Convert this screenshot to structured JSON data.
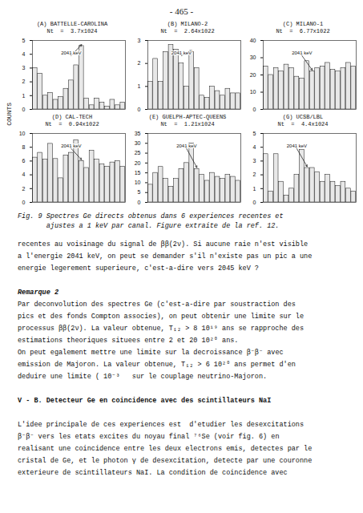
{
  "header": "- 465 -",
  "ylabel": "COUNTS",
  "caption": [
    "Fig. 9 Spectres Ge directs obtenus dans 6 experiences recentes et",
    "       ajustes a 1 keV par canal. Figure extraite de la ref. 12."
  ],
  "body": [
    [
      {
        "text": "recentes au voisinage du signal de ββ(2ν). Si aucune raie n'est visible",
        "style": "normal"
      },
      {
        "text": "a l'energie 2041 keV, on peut se demander s'il n'existe pas un pic a une",
        "style": "normal"
      },
      {
        "text": "energie legerement superieure, c'est-a-dire vers 2045 keV ?",
        "style": "normal"
      }
    ],
    [
      {
        "text": "Remarque 2",
        "style": "bold_italic"
      },
      {
        "text": "Par deconvolution des spectres Ge (c'est-a-dire par soustraction des",
        "style": "normal"
      },
      {
        "text": "pics et des fonds Compton associes), on peut obtenir une limite sur le",
        "style": "normal"
      },
      {
        "text": "processus ββ(2ν). La valeur obtenue, T₁₂ > 8 10¹⁹ ans se rapproche des",
        "style": "normal"
      },
      {
        "text": "estimations theoriques situees entre 2 et 20 10²⁰ ans.",
        "style": "normal"
      },
      {
        "text": "On peut egalement mettre une limite sur la decroissance β⁻β⁻ avec",
        "style": "normal"
      },
      {
        "text": "emission de Majoron. La valeur obtenue, T₁₂ > 6 10²⁰ ans permet d'en",
        "style": "normal"
      },
      {
        "text": "deduire une limite ( 10⁻³   sur le couplage neutrino-Majoron.",
        "style": "normal"
      }
    ],
    [
      {
        "text": "V - B. Detecteur Ge en coincidence avec des scintillateurs NaI",
        "style": "bold"
      }
    ],
    [
      {
        "text": "L'idee principale de ces experiences est  d'etudier les desexcitations",
        "style": "normal"
      },
      {
        "text": "β⁻β⁻ vers les etats excites du noyau final ⁷⁶Se (voir fig. 6) en",
        "style": "normal"
      },
      {
        "text": "realisant une coincidence entre les deux electrons emis, detectes par le",
        "style": "normal"
      },
      {
        "text": "cristal de Ge, et le photon γ de desexcitation, detecte par une couronne",
        "style": "normal"
      },
      {
        "text": "exterieure de scintillateurs NaI. La condition de coincidence avec",
        "style": "normal"
      }
    ]
  ],
  "chart_data": [
    {
      "type": "bar",
      "title": "(A) BATTELLE-CAROLINA",
      "subtitle": "Nt  =  3.7x1024",
      "categories": [
        null,
        null,
        null,
        null,
        null,
        null,
        null,
        null,
        null,
        null,
        null,
        null,
        null,
        null,
        null,
        null,
        null,
        null
      ],
      "values": [
        3.0,
        2.6,
        1.0,
        1.2,
        0.7,
        0.9,
        1.5,
        2.1,
        3.2,
        4.6,
        0.8,
        0.3,
        0.8,
        0.5,
        0.2,
        0.7,
        0.3,
        0.5
      ],
      "color": "#e8e8e8",
      "ylim": [
        0,
        5
      ],
      "yticks": [
        0,
        1,
        2,
        3,
        4,
        5
      ],
      "grid": false,
      "tick_labels": "y",
      "annotations": [
        {
          "text": "2041 keV",
          "bar": 9
        }
      ]
    },
    {
      "type": "bar",
      "title": "(B) MILANO-2",
      "subtitle": "Nt  =  2.64x1022",
      "categories": [
        null,
        null,
        null,
        null,
        null,
        null,
        null,
        null,
        null,
        null,
        null,
        null,
        null,
        null,
        null,
        null,
        null,
        null
      ],
      "values": [
        1.2,
        2.2,
        1.2,
        2.5,
        2.8,
        2.6,
        2.0,
        1.0,
        2.5,
        1.8,
        0.6,
        0.5,
        1.0,
        0.8,
        0.6,
        0.9,
        0.7,
        0.7
      ],
      "color": "#e8e8e8",
      "ylim": [
        0,
        3
      ],
      "yticks": [
        0,
        1,
        2,
        3
      ],
      "grid": false,
      "tick_labels": "y",
      "annotations": [
        {
          "text": "2041 keV",
          "bar": 8
        }
      ]
    },
    {
      "type": "bar",
      "title": "(C) MILANO-1",
      "subtitle": "Nt  =  6.77x1022",
      "categories": [
        null,
        null,
        null,
        null,
        null,
        null,
        null,
        null,
        null,
        null,
        null,
        null,
        null,
        null,
        null,
        null,
        null,
        null
      ],
      "values": [
        25,
        20,
        24,
        22,
        26,
        24,
        19,
        18,
        28,
        22,
        24,
        25,
        27,
        23,
        22,
        24,
        27,
        25
      ],
      "color": "#e8e8e8",
      "ylim": [
        0,
        40
      ],
      "yticks": [
        0,
        10,
        20,
        30,
        40
      ],
      "grid": false,
      "tick_labels": "y",
      "annotations": [
        {
          "text": "2041 keV",
          "bar": 9
        }
      ]
    },
    {
      "type": "bar",
      "title": "(D) CAL-TECH",
      "subtitle": "Nt  =  0.94x1022",
      "categories": [
        null,
        null,
        null,
        null,
        null,
        null,
        null,
        null,
        null,
        null,
        null,
        null,
        null,
        null,
        null,
        null,
        null,
        null
      ],
      "values": [
        6.5,
        7.2,
        6.2,
        8.5,
        6.3,
        3.5,
        6.8,
        7.2,
        9.0,
        6.0,
        5.0,
        7.5,
        6.2,
        5.5,
        5.2,
        5.8,
        6.0,
        5.2
      ],
      "color": "#e8e8e8",
      "ylim": [
        0,
        10
      ],
      "yticks": [
        0,
        2,
        4,
        6,
        8,
        10
      ],
      "grid": false,
      "tick_labels": "y",
      "annotations": [
        {
          "text": "2041 keV",
          "bar": 9
        }
      ]
    },
    {
      "type": "bar",
      "title": "(E) GUELPH-APTEC-QUEENS",
      "subtitle": "Nt  =  1.21x1024",
      "categories": [
        null,
        null,
        null,
        null,
        null,
        null,
        null,
        null,
        null,
        null,
        null,
        null,
        null,
        null,
        null,
        null,
        null,
        null
      ],
      "values": [
        9,
        15,
        18,
        12,
        8,
        12,
        17,
        20,
        30,
        17,
        14,
        11,
        15,
        13,
        12,
        14,
        13,
        11
      ],
      "color": "#e8e8e8",
      "ylim": [
        0,
        35
      ],
      "yticks": [
        0,
        5,
        10,
        15,
        20,
        25,
        30,
        35
      ],
      "grid": false,
      "tick_labels": "y",
      "annotations": [
        {
          "text": "2041 keV",
          "bar": 9
        }
      ]
    },
    {
      "type": "bar",
      "title": "(G) UCSB/LBL",
      "subtitle": "Nt  =  4.4x1024",
      "categories": [
        null,
        null,
        null,
        null,
        null,
        null,
        null,
        null,
        null,
        null,
        null,
        null,
        null,
        null,
        null,
        null,
        null,
        null
      ],
      "values": [
        3.5,
        0.8,
        3.5,
        1.5,
        0.5,
        1.0,
        2.0,
        3.8,
        2.5,
        2.5,
        2.2,
        1.5,
        2.0,
        1.5,
        1.2,
        1.5,
        1.0,
        0.8
      ],
      "color": "#e8e8e8",
      "ylim": [
        0,
        5
      ],
      "yticks": [
        0,
        1,
        2,
        3,
        4,
        5
      ],
      "grid": false,
      "tick_labels": "y",
      "annotations": [
        {
          "text": "2041 keV",
          "bar": 8
        }
      ]
    }
  ]
}
